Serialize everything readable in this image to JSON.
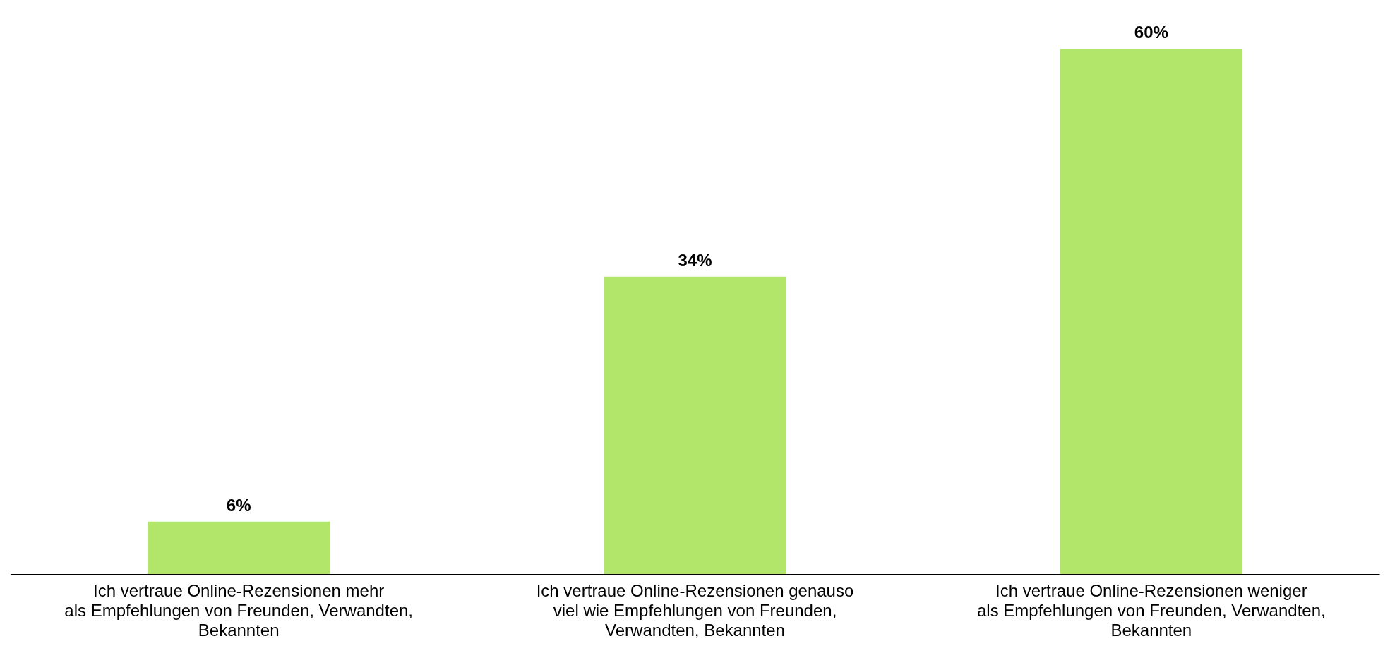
{
  "chart_data": {
    "type": "bar",
    "categories": [
      "Ich vertraue Online-Rezensionen mehr\nals Empfehlungen von Freunden, Verwandten,\nBekannten",
      "Ich vertraue Online-Rezensionen genauso\nviel wie Empfehlungen von Freunden,\nVerwandten, Bekannten",
      "Ich vertraue Online-Rezensionen weniger\nals Empfehlungen von Freunden, Verwandten,\nBekannten"
    ],
    "values": [
      6,
      34,
      60
    ],
    "value_labels": [
      "6%",
      "34%",
      "60%"
    ],
    "color": "#b2e66a",
    "grid": false
  }
}
